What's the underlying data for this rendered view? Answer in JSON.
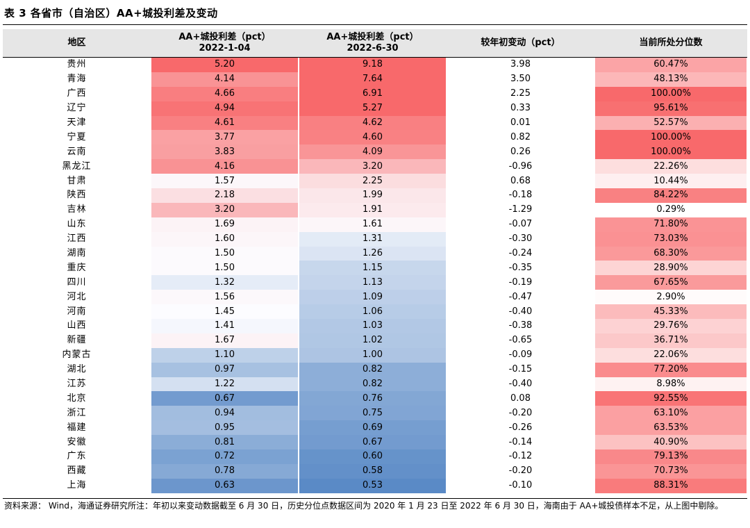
{
  "title": "表 3 各省市（自治区）AA+城投利差及变动",
  "headers": {
    "region": "地区",
    "spread_jan_line1": "AA+城投利差（pct）",
    "spread_jan_line2": "2022-1-04",
    "spread_jun_line1": "AA+城投利差（pct）",
    "spread_jun_line2": "2022-6-30",
    "change": "较年初变动（pct）",
    "percentile": "当前所处分位数"
  },
  "rows": [
    {
      "region": "贵州",
      "jan": "5.20",
      "jun": "9.18",
      "change": "3.98",
      "pct": "60.47%"
    },
    {
      "region": "青海",
      "jan": "4.14",
      "jun": "7.64",
      "change": "3.50",
      "pct": "48.13%"
    },
    {
      "region": "广西",
      "jan": "4.66",
      "jun": "6.91",
      "change": "2.25",
      "pct": "100.00%"
    },
    {
      "region": "辽宁",
      "jan": "4.94",
      "jun": "5.27",
      "change": "0.33",
      "pct": "95.61%"
    },
    {
      "region": "天津",
      "jan": "4.61",
      "jun": "4.62",
      "change": "0.01",
      "pct": "52.57%"
    },
    {
      "region": "宁夏",
      "jan": "3.77",
      "jun": "4.60",
      "change": "0.82",
      "pct": "100.00%"
    },
    {
      "region": "云南",
      "jan": "3.83",
      "jun": "4.09",
      "change": "0.26",
      "pct": "100.00%"
    },
    {
      "region": "黑龙江",
      "jan": "4.16",
      "jun": "3.20",
      "change": "-0.96",
      "pct": "22.26%"
    },
    {
      "region": "甘肃",
      "jan": "1.57",
      "jun": "2.25",
      "change": "0.68",
      "pct": "10.44%"
    },
    {
      "region": "陕西",
      "jan": "2.18",
      "jun": "1.99",
      "change": "-0.18",
      "pct": "84.22%"
    },
    {
      "region": "吉林",
      "jan": "3.20",
      "jun": "1.91",
      "change": "-1.29",
      "pct": "0.29%"
    },
    {
      "region": "山东",
      "jan": "1.69",
      "jun": "1.61",
      "change": "-0.07",
      "pct": "71.80%"
    },
    {
      "region": "江西",
      "jan": "1.60",
      "jun": "1.31",
      "change": "-0.30",
      "pct": "73.03%"
    },
    {
      "region": "湖南",
      "jan": "1.50",
      "jun": "1.26",
      "change": "-0.24",
      "pct": "68.30%"
    },
    {
      "region": "重庆",
      "jan": "1.50",
      "jun": "1.15",
      "change": "-0.35",
      "pct": "28.90%"
    },
    {
      "region": "四川",
      "jan": "1.32",
      "jun": "1.13",
      "change": "-0.19",
      "pct": "67.65%"
    },
    {
      "region": "河北",
      "jan": "1.56",
      "jun": "1.09",
      "change": "-0.47",
      "pct": "2.90%"
    },
    {
      "region": "河南",
      "jan": "1.45",
      "jun": "1.06",
      "change": "-0.40",
      "pct": "45.33%"
    },
    {
      "region": "山西",
      "jan": "1.41",
      "jun": "1.03",
      "change": "-0.38",
      "pct": "29.76%"
    },
    {
      "region": "新疆",
      "jan": "1.67",
      "jun": "1.02",
      "change": "-0.65",
      "pct": "36.71%"
    },
    {
      "region": "内蒙古",
      "jan": "1.10",
      "jun": "1.00",
      "change": "-0.09",
      "pct": "22.06%"
    },
    {
      "region": "湖北",
      "jan": "0.97",
      "jun": "0.82",
      "change": "-0.15",
      "pct": "77.20%"
    },
    {
      "region": "江苏",
      "jan": "1.22",
      "jun": "0.82",
      "change": "-0.40",
      "pct": "8.98%"
    },
    {
      "region": "北京",
      "jan": "0.67",
      "jun": "0.76",
      "change": "0.08",
      "pct": "92.55%"
    },
    {
      "region": "浙江",
      "jan": "0.94",
      "jun": "0.75",
      "change": "-0.20",
      "pct": "63.10%"
    },
    {
      "region": "福建",
      "jan": "0.95",
      "jun": "0.69",
      "change": "-0.26",
      "pct": "63.53%"
    },
    {
      "region": "安徽",
      "jan": "0.81",
      "jun": "0.67",
      "change": "-0.14",
      "pct": "40.90%"
    },
    {
      "region": "广东",
      "jan": "0.72",
      "jun": "0.60",
      "change": "-0.12",
      "pct": "79.13%"
    },
    {
      "region": "西藏",
      "jan": "0.78",
      "jun": "0.58",
      "change": "-0.20",
      "pct": "70.73%"
    },
    {
      "region": "上海",
      "jan": "0.63",
      "jun": "0.53",
      "change": "-0.10",
      "pct": "88.31%"
    }
  ],
  "note": "资料来源： Wind，海通证券研究所注：年初以来变动数据截至 6 月 30 日，历史分位点数据区间为 2020 年 1 月 23 日至 2022 年 6 月 30 日，海南由于 AA+城投债样本不足，从上图中剔除。",
  "colors": {
    "high": "#f8696b",
    "mid": "#fcfcff",
    "low": "#5a8ac6",
    "header_bg": "#e6e6e6"
  }
}
